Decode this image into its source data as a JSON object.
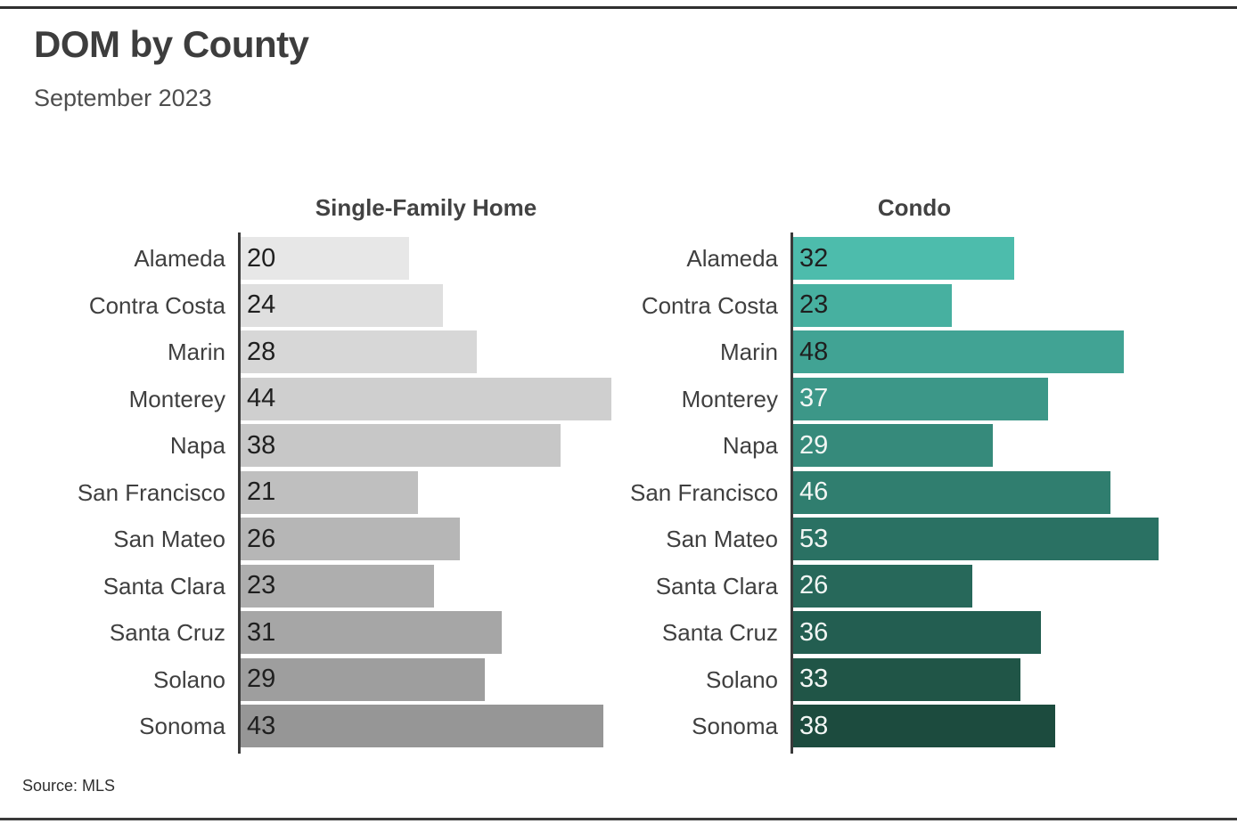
{
  "header": {
    "title": "DOM by County",
    "subtitle": "September 2023"
  },
  "footer": {
    "source": "Source: MLS"
  },
  "chart_data": {
    "type": "bar",
    "orientation": "horizontal",
    "title": "DOM by County",
    "subtitle": "September 2023",
    "source": "Source: MLS",
    "grid": false,
    "legend": "none",
    "axis_color": "#3a3a3a",
    "value_label_position": "inside-left",
    "categories": [
      "Alameda",
      "Contra Costa",
      "Marin",
      "Monterey",
      "Napa",
      "San Francisco",
      "San Mateo",
      "Santa Clara",
      "Santa Cruz",
      "Solano",
      "Sonoma"
    ],
    "series": [
      {
        "name": "Single-Family Home",
        "values": [
          20,
          24,
          28,
          44,
          38,
          21,
          26,
          23,
          31,
          29,
          43
        ],
        "bar_colors": [
          "#E7E7E7",
          "#DFDFDF",
          "#D7D7D7",
          "#CFCFCF",
          "#C7C7C7",
          "#BFBFBF",
          "#B6B6B6",
          "#AEAEAE",
          "#A6A6A6",
          "#9E9E9E",
          "#969696"
        ],
        "value_text_colors": [
          "#1f1f1f",
          "#1f1f1f",
          "#1f1f1f",
          "#1f1f1f",
          "#1f1f1f",
          "#1f1f1f",
          "#1f1f1f",
          "#1f1f1f",
          "#1f1f1f",
          "#1f1f1f",
          "#1f1f1f"
        ]
      },
      {
        "name": "Condo",
        "values": [
          32,
          23,
          48,
          37,
          29,
          46,
          53,
          26,
          36,
          33,
          38
        ],
        "bar_colors": [
          "#4DBCAC",
          "#47B0A0",
          "#41A394",
          "#3C9788",
          "#368A7B",
          "#307E6F",
          "#2A7163",
          "#27685A",
          "#235E51",
          "#205547",
          "#1C4B3E"
        ],
        "value_text_colors": [
          "#1f1f1f",
          "#1f1f1f",
          "#1f1f1f",
          "#f2f6f4",
          "#f2f6f4",
          "#f2f6f4",
          "#f2f6f4",
          "#f2f6f4",
          "#f2f6f4",
          "#f2f6f4",
          "#f2f6f4"
        ]
      }
    ]
  }
}
